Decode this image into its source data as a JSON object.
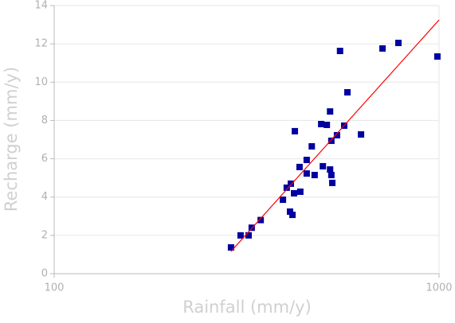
{
  "chart_data": {
    "type": "scatter",
    "x_label": "Rainfall (mm/y)",
    "y_label": "Recharge (mm/y)",
    "xscale": "log",
    "grid": true,
    "marker": "square",
    "color": "#0000a0",
    "x": [
      288,
      305,
      320,
      326,
      344,
      393,
      402,
      412,
      410,
      416,
      420,
      422,
      434,
      436,
      453,
      453,
      467,
      475,
      494,
      499,
      511,
      521,
      521,
      525,
      525,
      528,
      543,
      553,
      567,
      578,
      627,
      713,
      784,
      990
    ],
    "values": [
      1.37,
      2.0,
      2.0,
      2.4,
      2.8,
      3.86,
      4.49,
      4.7,
      3.24,
      3.07,
      4.2,
      7.44,
      5.57,
      4.28,
      5.94,
      5.23,
      6.65,
      5.15,
      7.81,
      5.61,
      7.77,
      8.47,
      5.44,
      5.15,
      6.94,
      4.74,
      7.23,
      11.63,
      7.73,
      9.47,
      7.27,
      11.76,
      12.05,
      11.34
    ],
    "trendline": {
      "x": [
        288,
        1000
      ],
      "values": [
        1.16,
        13.25
      ],
      "color": "#ff0000"
    },
    "xlim": [
      100,
      1000
    ],
    "xticks": [
      100,
      1000
    ],
    "ylim": [
      0,
      14
    ],
    "yticks": [
      0,
      2,
      4,
      6,
      8,
      10,
      12,
      14
    ]
  }
}
